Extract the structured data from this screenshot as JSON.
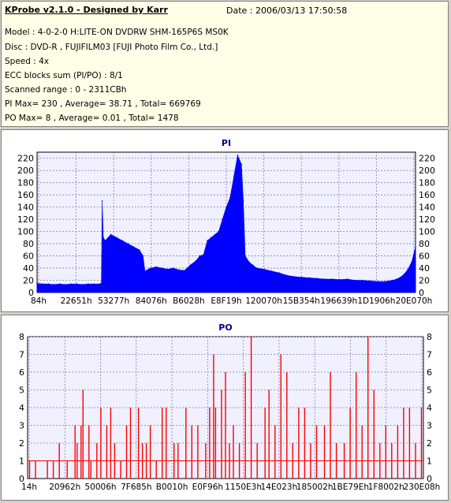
{
  "header": {
    "title": "KProbe v2.1.0 - Designed by Karr",
    "date": "Date : 2006/03/13 17:50:58",
    "lines": [
      "Model : 4-0-2-0 H:LITE-ON DVDRW SHM-165P6S MS0K",
      "Disc : DVD-R , FUJIFILM03 [FUJI Photo Film Co., Ltd.]",
      "Speed : 4x",
      "ECC blocks sum (PI/PO) : 8/1",
      "Scanned range : 0 - 2311CBh",
      "PI Max= 230 , Average= 38.71 , Total= 669769",
      "PO Max= 8 , Average= 0.01 , Total= 1478"
    ]
  },
  "colors": {
    "pi": "#0000ff",
    "po": "#ff0000",
    "grid": "#7f7fb0",
    "plot_bg": "#f0f0ff"
  },
  "chart_data": [
    {
      "type": "area",
      "title": "PI",
      "x_ticks": [
        "84h",
        "22651h",
        "53277h",
        "84076h",
        "B6028h",
        "E8F19h",
        "120070h",
        "15B354h",
        "196639h",
        "1D1906h",
        "20E070h"
      ],
      "y_ticks": [
        0,
        20,
        40,
        60,
        80,
        100,
        120,
        140,
        160,
        180,
        200,
        220
      ],
      "ylim": [
        0,
        230
      ],
      "grid": true,
      "series": [
        {
          "x": [
            0,
            0.015,
            0.03,
            0.045,
            0.06,
            0.075,
            0.09,
            0.105,
            0.12,
            0.135,
            0.15,
            0.165,
            0.17,
            0.172,
            0.175,
            0.18,
            0.195,
            0.21,
            0.225,
            0.24,
            0.255,
            0.27,
            0.28,
            0.285,
            0.3,
            0.315,
            0.33,
            0.345,
            0.36,
            0.375,
            0.39,
            0.405,
            0.42,
            0.43,
            0.44,
            0.45,
            0.46,
            0.47,
            0.48,
            0.49,
            0.5,
            0.51,
            0.52,
            0.53,
            0.54,
            0.545,
            0.55,
            0.56,
            0.57,
            0.58,
            0.6,
            0.62,
            0.64,
            0.66,
            0.68,
            0.7,
            0.72,
            0.74,
            0.76,
            0.78,
            0.8,
            0.82,
            0.84,
            0.86,
            0.88,
            0.9,
            0.92,
            0.94,
            0.95,
            0.96,
            0.97,
            0.98,
            0.99,
            1.0
          ],
          "values": [
            15,
            14,
            14,
            13,
            14,
            13,
            14,
            14,
            13,
            14,
            14,
            14,
            15,
            150,
            90,
            85,
            95,
            90,
            85,
            80,
            75,
            70,
            60,
            35,
            40,
            42,
            40,
            38,
            40,
            37,
            36,
            45,
            52,
            60,
            62,
            85,
            90,
            95,
            100,
            120,
            140,
            155,
            190,
            225,
            210,
            150,
            60,
            50,
            45,
            40,
            38,
            35,
            32,
            28,
            26,
            25,
            24,
            23,
            22,
            22,
            21,
            22,
            20,
            20,
            19,
            18,
            18,
            20,
            22,
            25,
            30,
            38,
            50,
            75
          ]
        }
      ]
    },
    {
      "type": "bar",
      "title": "PO",
      "x_ticks": [
        "14h",
        "20962h",
        "50006h",
        "7F685h",
        "B0010h",
        "E0F96h",
        "1150E3h",
        "14E023h",
        "185002h",
        "1BE79Eh",
        "1F8002h",
        "230E08h"
      ],
      "y_ticks": [
        0,
        1,
        2,
        3,
        4,
        5,
        6,
        7,
        8
      ],
      "ylim": [
        0,
        8
      ],
      "grid": true,
      "series": [
        {
          "x": [
            0.005,
            0.02,
            0.05,
            0.065,
            0.08,
            0.1,
            0.12,
            0.125,
            0.135,
            0.14,
            0.155,
            0.16,
            0.175,
            0.185,
            0.2,
            0.21,
            0.22,
            0.235,
            0.25,
            0.26,
            0.28,
            0.29,
            0.3,
            0.31,
            0.325,
            0.34,
            0.35,
            0.37,
            0.38,
            0.4,
            0.415,
            0.43,
            0.45,
            0.46,
            0.47,
            0.475,
            0.49,
            0.5,
            0.51,
            0.52,
            0.535,
            0.55,
            0.565,
            0.58,
            0.6,
            0.61,
            0.625,
            0.64,
            0.655,
            0.67,
            0.685,
            0.7,
            0.715,
            0.73,
            0.75,
            0.765,
            0.78,
            0.8,
            0.815,
            0.83,
            0.845,
            0.86,
            0.875,
            0.89,
            0.905,
            0.92,
            0.935,
            0.95,
            0.965,
            0.98,
            0.995
          ],
          "values": [
            1,
            1,
            1,
            1,
            2,
            1,
            3,
            2,
            3,
            5,
            3,
            1,
            2,
            4,
            3,
            4,
            2,
            1,
            3,
            4,
            4,
            2,
            2,
            3,
            1,
            4,
            4,
            2,
            2,
            4,
            3,
            3,
            2,
            4,
            7,
            4,
            5,
            6,
            2,
            3,
            2,
            6,
            8,
            2,
            4,
            5,
            3,
            7,
            6,
            2,
            4,
            4,
            2,
            3,
            3,
            6,
            2,
            2,
            4,
            6,
            3,
            8,
            5,
            2,
            3,
            2,
            3,
            4,
            4,
            2,
            4
          ]
        }
      ]
    }
  ]
}
